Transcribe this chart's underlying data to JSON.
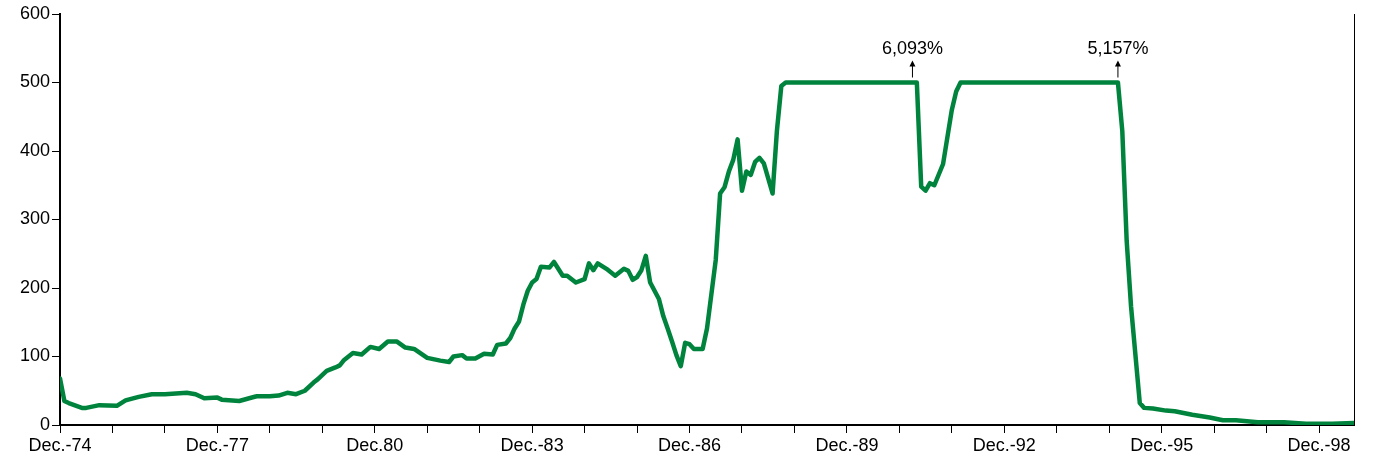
{
  "chart_data": {
    "type": "line",
    "marker": "none",
    "line_style": "solid",
    "grid": false,
    "xlim": [
      "1974-12",
      "1999-08"
    ],
    "ylim": [
      0,
      600
    ],
    "yticks": [
      0,
      100,
      200,
      300,
      400,
      500,
      600
    ],
    "xticks": [
      {
        "value": "1974-12",
        "label": "Dec.-74"
      },
      {
        "value": "1975-12",
        "label": null
      },
      {
        "value": "1976-12",
        "label": null
      },
      {
        "value": "1977-12",
        "label": "Dec.-77"
      },
      {
        "value": "1978-12",
        "label": null
      },
      {
        "value": "1979-12",
        "label": null
      },
      {
        "value": "1980-12",
        "label": "Dec.80"
      },
      {
        "value": "1981-12",
        "label": null
      },
      {
        "value": "1982-12",
        "label": null
      },
      {
        "value": "1983-12",
        "label": "Dec.-83"
      },
      {
        "value": "1984-12",
        "label": null
      },
      {
        "value": "1985-12",
        "label": null
      },
      {
        "value": "1986-12",
        "label": "Dec.-86"
      },
      {
        "value": "1987-12",
        "label": null
      },
      {
        "value": "1988-12",
        "label": null
      },
      {
        "value": "1989-12",
        "label": "Dec.-89"
      },
      {
        "value": "1990-12",
        "label": null
      },
      {
        "value": "1991-12",
        "label": null
      },
      {
        "value": "1992-12",
        "label": "Dec.-92"
      },
      {
        "value": "1993-12",
        "label": null
      },
      {
        "value": "1994-12",
        "label": null
      },
      {
        "value": "1995-12",
        "label": "Dec.-95"
      },
      {
        "value": "1996-12",
        "label": null
      },
      {
        "value": "1997-12",
        "label": null
      },
      {
        "value": "1998-12",
        "label": "Dec.-98"
      }
    ],
    "annotations": [
      {
        "text": "6,093%",
        "x": "1991-03",
        "y": 500
      },
      {
        "text": "5,157%",
        "x": "1995-02",
        "y": 500
      }
    ],
    "series": [
      {
        "color": "#00843d",
        "x": [
          "1974-12",
          "1975-01",
          "1975-02",
          "1975-05",
          "1975-06",
          "1975-09",
          "1976-01",
          "1976-03",
          "1976-06",
          "1976-09",
          "1976-12",
          "1977-05",
          "1977-07",
          "1977-09",
          "1977-12",
          "1978-01",
          "1978-05",
          "1978-09",
          "1978-12",
          "1979-02",
          "1979-04",
          "1979-06",
          "1979-08",
          "1979-10",
          "1979-11",
          "1980-01",
          "1980-03",
          "1980-04",
          "1980-05",
          "1980-07",
          "1980-09",
          "1980-11",
          "1981-01",
          "1981-03",
          "1981-05",
          "1981-07",
          "1981-09",
          "1981-12",
          "1982-03",
          "1982-05",
          "1982-06",
          "1982-08",
          "1982-09",
          "1982-11",
          "1983-01",
          "1983-03",
          "1983-04",
          "1983-06",
          "1983-07",
          "1983-08",
          "1983-09",
          "1983-10",
          "1983-11",
          "1983-12",
          "1984-01",
          "1984-02",
          "1984-04",
          "1984-05",
          "1984-07",
          "1984-08",
          "1984-10",
          "1984-12",
          "1985-01",
          "1985-02",
          "1985-03",
          "1985-05",
          "1985-07",
          "1985-09",
          "1985-10",
          "1985-11",
          "1985-12",
          "1986-01",
          "1986-02",
          "1986-03",
          "1986-05",
          "1986-06",
          "1986-07",
          "1986-08",
          "1986-09",
          "1986-10",
          "1986-11",
          "1986-12",
          "1987-01",
          "1987-03",
          "1987-04",
          "1987-05",
          "1987-06",
          "1987-07",
          "1987-08",
          "1987-09",
          "1987-10",
          "1987-11",
          "1987-12",
          "1988-01",
          "1988-02",
          "1988-03",
          "1988-04",
          "1988-05",
          "1988-07",
          "1988-08",
          "1988-09",
          "1988-10",
          "1991-04",
          "1991-05",
          "1991-06",
          "1991-07",
          "1991-08",
          "1991-10",
          "1991-12",
          "1992-01",
          "1992-02",
          "1995-02",
          "1995-03",
          "1995-04",
          "1995-05",
          "1995-07",
          "1995-08",
          "1995-10",
          "1996-01",
          "1996-03",
          "1996-07",
          "1996-11",
          "1997-02",
          "1997-05",
          "1997-10",
          "1998-04",
          "1998-09",
          "1999-03",
          "1999-08"
        ],
        "values": [
          68,
          35,
          32,
          25,
          25,
          29,
          28,
          36,
          41,
          45,
          45,
          47,
          45,
          39,
          40,
          37,
          35,
          42,
          42,
          43,
          47,
          45,
          50,
          62,
          67,
          79,
          84,
          87,
          95,
          105,
          103,
          114,
          111,
          122,
          122,
          113,
          111,
          98,
          94,
          92,
          100,
          102,
          97,
          97,
          104,
          103,
          117,
          119,
          127,
          141,
          151,
          176,
          196,
          208,
          213,
          231,
          230,
          238,
          218,
          218,
          208,
          213,
          236,
          226,
          236,
          228,
          218,
          228,
          225,
          212,
          216,
          226,
          247,
          208,
          184,
          159,
          141,
          122,
          102,
          86,
          120,
          118,
          111,
          111,
          141,
          191,
          241,
          338,
          347,
          370,
          387,
          417,
          342,
          370,
          365,
          384,
          390,
          382,
          338,
          430,
          495,
          500,
          500,
          348,
          342,
          353,
          350,
          381,
          460,
          487,
          500,
          500,
          429,
          269,
          173,
          32,
          25,
          24,
          21,
          20,
          15,
          11,
          7,
          7,
          4,
          4,
          2,
          2,
          3
        ]
      }
    ]
  }
}
